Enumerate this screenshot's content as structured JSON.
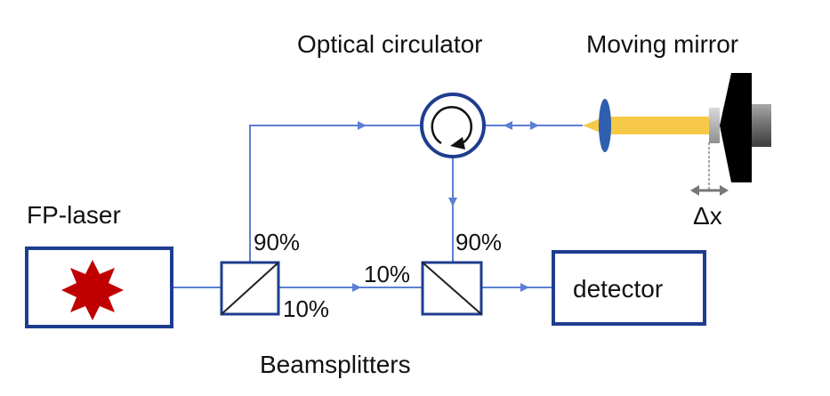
{
  "labels": {
    "circulator": "Optical circulator",
    "mirror": "Moving mirror",
    "laser": "FP-laser",
    "bs1_top": "90%",
    "bs1_bottom": "10%",
    "bs2_left": "10%",
    "bs2_top": "90%",
    "detector": "detector",
    "beamsplitters": "Beamsplitters",
    "displacement": "Δx"
  },
  "colors": {
    "beam": "#5b7fd4",
    "box": "#1f3d8f",
    "laser_star": "#c00000",
    "free_space_beam": "#f7c948",
    "lens": "#2f5fb0",
    "mirror_body": "#000000",
    "mirror_mount": "#7f7f7f"
  }
}
